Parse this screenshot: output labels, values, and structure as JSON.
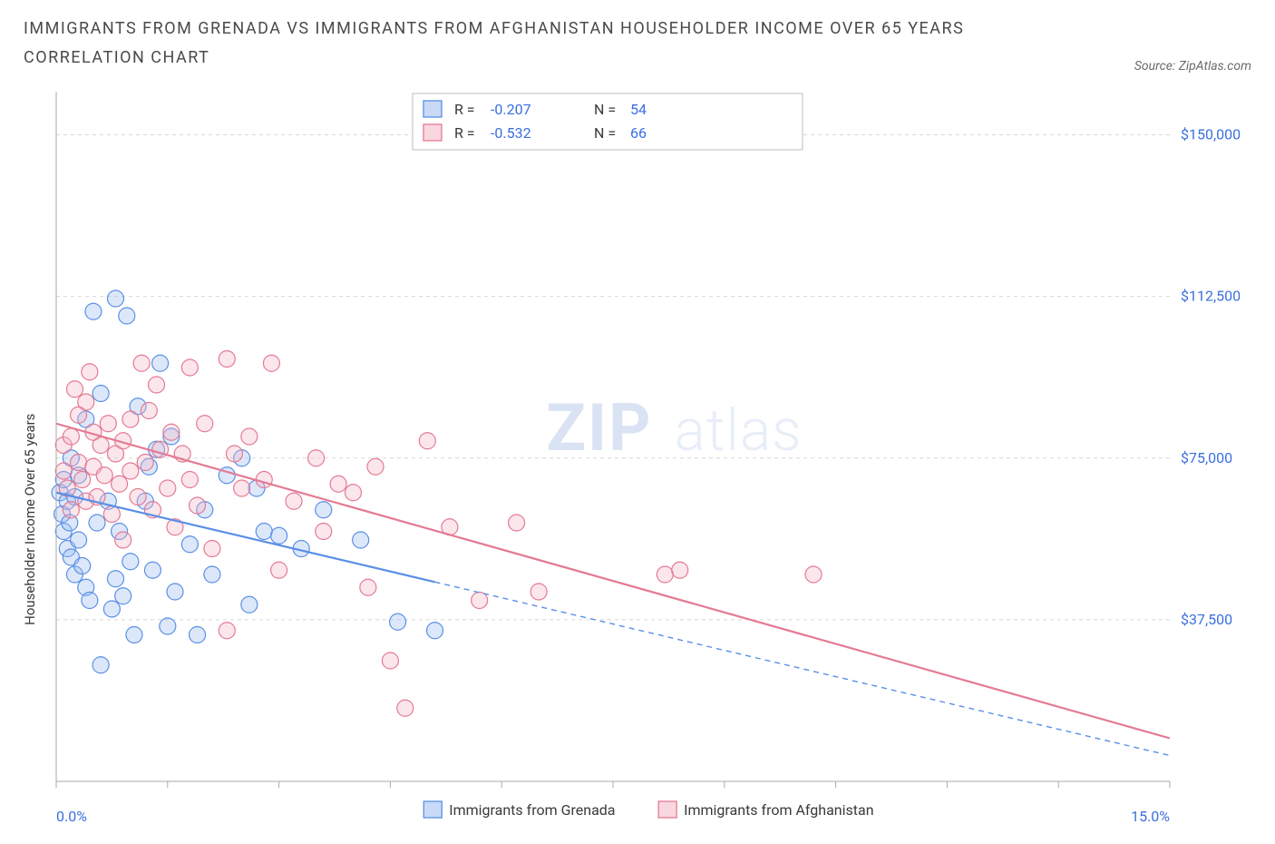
{
  "header": {
    "title": "IMMIGRANTS FROM GRENADA VS IMMIGRANTS FROM AFGHANISTAN HOUSEHOLDER INCOME OVER 65 YEARS CORRELATION CHART",
    "source_prefix": "Source: ",
    "source_name": "ZipAtlas.com"
  },
  "chart": {
    "type": "scatter",
    "ylabel": "Householder Income Over 65 years",
    "xlim": [
      0,
      15
    ],
    "ylim": [
      0,
      160000
    ],
    "xlim_labels": [
      "0.0%",
      "15.0%"
    ],
    "ytick_values": [
      37500,
      75000,
      112500,
      150000
    ],
    "ytick_labels": [
      "$37,500",
      "$75,000",
      "$112,500",
      "$150,000"
    ],
    "xtick_values": [
      0,
      1.5,
      3.0,
      4.5,
      6.0,
      7.5,
      9.0,
      10.5,
      12.0,
      13.5,
      15.0
    ],
    "grid_color": "#d8d8d8",
    "axis_color": "#aaaaaa",
    "background_color": "#ffffff",
    "marker_radius": 9,
    "marker_stroke_width": 1.2,
    "marker_fill_opacity": 0.35,
    "line_width": 2.2,
    "watermark": {
      "part1": "ZIP",
      "part2": "atlas"
    },
    "series": [
      {
        "name": "Immigrants from Grenada",
        "color_stroke": "#5a8fe6",
        "color_fill": "#9cbcf0",
        "R": "-0.207",
        "N": "54",
        "trend": {
          "y_at_xmin": 67000,
          "y_at_xmax": 6000,
          "solid_until_x": 5.1
        },
        "points": [
          [
            0.05,
            67000
          ],
          [
            0.08,
            62000
          ],
          [
            0.1,
            70000
          ],
          [
            0.1,
            58000
          ],
          [
            0.15,
            54000
          ],
          [
            0.15,
            65000
          ],
          [
            0.18,
            60000
          ],
          [
            0.2,
            52000
          ],
          [
            0.2,
            75000
          ],
          [
            0.25,
            48000
          ],
          [
            0.25,
            66000
          ],
          [
            0.3,
            56000
          ],
          [
            0.3,
            71000
          ],
          [
            0.35,
            50000
          ],
          [
            0.4,
            84000
          ],
          [
            0.4,
            45000
          ],
          [
            0.45,
            42000
          ],
          [
            0.5,
            109000
          ],
          [
            0.55,
            60000
          ],
          [
            0.6,
            27000
          ],
          [
            0.6,
            90000
          ],
          [
            0.7,
            65000
          ],
          [
            0.75,
            40000
          ],
          [
            0.8,
            112000
          ],
          [
            0.8,
            47000
          ],
          [
            0.85,
            58000
          ],
          [
            0.9,
            43000
          ],
          [
            0.95,
            108000
          ],
          [
            1.0,
            51000
          ],
          [
            1.05,
            34000
          ],
          [
            1.1,
            87000
          ],
          [
            1.2,
            65000
          ],
          [
            1.25,
            73000
          ],
          [
            1.3,
            49000
          ],
          [
            1.35,
            77000
          ],
          [
            1.4,
            97000
          ],
          [
            1.5,
            36000
          ],
          [
            1.55,
            80000
          ],
          [
            1.6,
            44000
          ],
          [
            1.8,
            55000
          ],
          [
            1.9,
            34000
          ],
          [
            2.0,
            63000
          ],
          [
            2.1,
            48000
          ],
          [
            2.3,
            71000
          ],
          [
            2.5,
            75000
          ],
          [
            2.6,
            41000
          ],
          [
            2.7,
            68000
          ],
          [
            2.8,
            58000
          ],
          [
            3.0,
            57000
          ],
          [
            3.3,
            54000
          ],
          [
            3.6,
            63000
          ],
          [
            4.1,
            56000
          ],
          [
            4.6,
            37000
          ],
          [
            5.1,
            35000
          ]
        ]
      },
      {
        "name": "Immigrants from Afghanistan",
        "color_stroke": "#e47a93",
        "color_fill": "#f4b7c5",
        "R": "-0.532",
        "N": "66",
        "trend": {
          "y_at_xmin": 83000,
          "y_at_xmax": 10000,
          "solid_until_x": 15.0
        },
        "points": [
          [
            0.1,
            78000
          ],
          [
            0.1,
            72000
          ],
          [
            0.15,
            68000
          ],
          [
            0.2,
            80000
          ],
          [
            0.2,
            63000
          ],
          [
            0.25,
            91000
          ],
          [
            0.3,
            74000
          ],
          [
            0.3,
            85000
          ],
          [
            0.35,
            70000
          ],
          [
            0.4,
            88000
          ],
          [
            0.4,
            65000
          ],
          [
            0.45,
            95000
          ],
          [
            0.5,
            73000
          ],
          [
            0.5,
            81000
          ],
          [
            0.55,
            66000
          ],
          [
            0.6,
            78000
          ],
          [
            0.65,
            71000
          ],
          [
            0.7,
            83000
          ],
          [
            0.75,
            62000
          ],
          [
            0.8,
            76000
          ],
          [
            0.85,
            69000
          ],
          [
            0.9,
            79000
          ],
          [
            0.9,
            56000
          ],
          [
            1.0,
            84000
          ],
          [
            1.0,
            72000
          ],
          [
            1.1,
            66000
          ],
          [
            1.15,
            97000
          ],
          [
            1.2,
            74000
          ],
          [
            1.25,
            86000
          ],
          [
            1.3,
            63000
          ],
          [
            1.35,
            92000
          ],
          [
            1.4,
            77000
          ],
          [
            1.5,
            68000
          ],
          [
            1.55,
            81000
          ],
          [
            1.6,
            59000
          ],
          [
            1.7,
            76000
          ],
          [
            1.8,
            96000
          ],
          [
            1.8,
            70000
          ],
          [
            1.9,
            64000
          ],
          [
            2.0,
            83000
          ],
          [
            2.1,
            54000
          ],
          [
            2.3,
            98000
          ],
          [
            2.3,
            35000
          ],
          [
            2.4,
            76000
          ],
          [
            2.5,
            68000
          ],
          [
            2.6,
            80000
          ],
          [
            2.8,
            70000
          ],
          [
            2.9,
            97000
          ],
          [
            3.0,
            49000
          ],
          [
            3.2,
            65000
          ],
          [
            3.5,
            75000
          ],
          [
            3.6,
            58000
          ],
          [
            3.8,
            69000
          ],
          [
            4.0,
            67000
          ],
          [
            4.2,
            45000
          ],
          [
            4.3,
            73000
          ],
          [
            4.5,
            28000
          ],
          [
            4.7,
            17000
          ],
          [
            5.0,
            79000
          ],
          [
            5.3,
            59000
          ],
          [
            5.7,
            42000
          ],
          [
            6.2,
            60000
          ],
          [
            6.5,
            44000
          ],
          [
            8.2,
            48000
          ],
          [
            8.4,
            49000
          ],
          [
            10.2,
            48000
          ]
        ]
      }
    ],
    "bottom_legend": [
      {
        "label": "Immigrants from Grenada",
        "fill": "#9cbcf0",
        "stroke": "#5a8fe6"
      },
      {
        "label": "Immigrants from Afghanistan",
        "fill": "#f4b7c5",
        "stroke": "#e47a93"
      }
    ]
  }
}
